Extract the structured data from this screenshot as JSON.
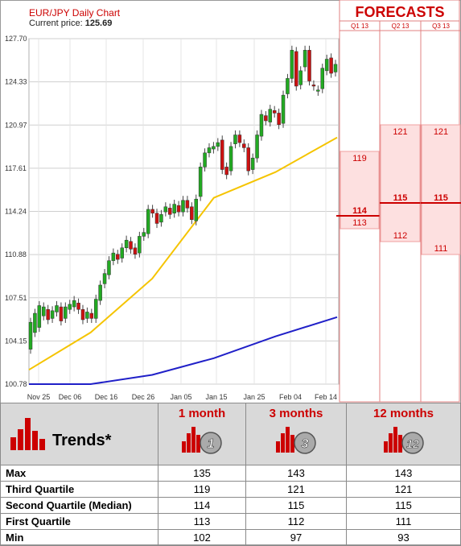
{
  "header": {
    "title": "EUR/JPY Daily Chart",
    "price_label": "Current price:",
    "price": "125.69"
  },
  "forecasts": {
    "title": "FORECASTS",
    "quarters": [
      "Q1 13",
      "Q2 13",
      "Q3 13"
    ],
    "columns": [
      {
        "quarter": "Q1 13",
        "q3": 119,
        "median": 114,
        "q1": 113
      },
      {
        "quarter": "Q2 13",
        "q3": 121,
        "median": 115,
        "q1": 112
      },
      {
        "quarter": "Q3 13",
        "q3": 121,
        "median": 115,
        "q1": 111
      }
    ],
    "median_color": "#cc0000",
    "band_color": "#fde0e0"
  },
  "chart_data": {
    "type": "candlestick",
    "title": "EUR/JPY Daily Chart",
    "y_ticks": [
      "127.70",
      "124.33",
      "120.97",
      "117.61",
      "114.24",
      "110.88",
      "107.51",
      "104.15",
      "100.78"
    ],
    "ylim": [
      100.78,
      127.7
    ],
    "x_ticks": [
      "Nov 25",
      "Dec 06",
      "Dec 16",
      "Dec 26",
      "Jan 05",
      "Jan 15",
      "Jan 25",
      "Feb 04",
      "Feb 14"
    ],
    "candles": [
      [
        103.5,
        105.6
      ],
      [
        104.8,
        106.3
      ],
      [
        105.2,
        106.9
      ],
      [
        106.1,
        106.8
      ],
      [
        106.6,
        105.8
      ],
      [
        105.9,
        106.5
      ],
      [
        106.4,
        106.9
      ],
      [
        106.8,
        105.7
      ],
      [
        105.9,
        106.8
      ],
      [
        106.6,
        107.0
      ],
      [
        106.8,
        107.3
      ],
      [
        107.1,
        106.6
      ],
      [
        106.6,
        105.8
      ],
      [
        105.9,
        106.4
      ],
      [
        106.3,
        105.9
      ],
      [
        105.9,
        107.4
      ],
      [
        107.3,
        108.5
      ],
      [
        108.6,
        109.4
      ],
      [
        109.3,
        110.4
      ],
      [
        110.4,
        111.0
      ],
      [
        110.9,
        110.5
      ],
      [
        110.6,
        111.4
      ],
      [
        111.4,
        112.0
      ],
      [
        111.9,
        111.3
      ],
      [
        111.4,
        110.9
      ],
      [
        111.0,
        112.3
      ],
      [
        112.3,
        112.6
      ],
      [
        112.5,
        114.4
      ],
      [
        114.4,
        114.1
      ],
      [
        114.1,
        113.3
      ],
      [
        113.4,
        114.0
      ],
      [
        114.2,
        114.6
      ],
      [
        114.5,
        114.0
      ],
      [
        114.1,
        114.8
      ],
      [
        114.7,
        114.2
      ],
      [
        114.2,
        115.1
      ],
      [
        115.1,
        114.5
      ],
      [
        114.6,
        113.6
      ],
      [
        113.5,
        115.2
      ],
      [
        115.4,
        117.7
      ],
      [
        117.7,
        118.8
      ],
      [
        118.8,
        119.2
      ],
      [
        119.1,
        119.3
      ],
      [
        119.3,
        119.6
      ],
      [
        119.8,
        117.5
      ],
      [
        117.7,
        117.1
      ],
      [
        117.4,
        119.3
      ],
      [
        119.5,
        120.2
      ],
      [
        120.2,
        119.6
      ],
      [
        119.5,
        119.2
      ],
      [
        119.2,
        117.4
      ],
      [
        117.5,
        118.4
      ],
      [
        118.4,
        120.2
      ],
      [
        120.1,
        121.8
      ],
      [
        121.7,
        121.3
      ],
      [
        121.2,
        122.2
      ],
      [
        122.1,
        121.9
      ],
      [
        121.9,
        121.0
      ],
      [
        121.1,
        123.3
      ],
      [
        123.4,
        124.6
      ],
      [
        124.6,
        126.8
      ],
      [
        126.7,
        124.0
      ],
      [
        124.1,
        125.2
      ],
      [
        125.5,
        126.8
      ],
      [
        126.8,
        124.4
      ],
      [
        124.1,
        124.0
      ],
      [
        123.6,
        123.7
      ],
      [
        123.8,
        125.4
      ],
      [
        125.2,
        126.1
      ],
      [
        126.2,
        125.0
      ],
      [
        125.1,
        125.7
      ]
    ],
    "series": [
      {
        "name": "",
        "color": "#f5c400",
        "from": [
          101.9,
          104.8,
          109.0,
          115.3,
          117.3,
          120.0
        ]
      },
      {
        "name": "",
        "color": "#2020c8",
        "from": [
          100.78,
          100.78,
          101.5,
          102.8,
          104.5,
          106.0
        ]
      }
    ],
    "up_color": "#22aa22",
    "down_color": "#cc1111",
    "grid": true
  },
  "trends": {
    "title": "Trends*",
    "horizons": [
      {
        "label": "1 month",
        "badge": "1"
      },
      {
        "label": "3 months",
        "badge": "3"
      },
      {
        "label": "12 months",
        "badge": "12"
      }
    ],
    "rows": [
      {
        "label": "Max",
        "values": [
          135,
          143,
          143
        ]
      },
      {
        "label": "Third Quartile",
        "values": [
          119,
          121,
          121
        ]
      },
      {
        "label": "Second Quartile (Median)",
        "values": [
          114,
          115,
          115
        ]
      },
      {
        "label": "First Quartile",
        "values": [
          113,
          112,
          111
        ]
      },
      {
        "label": "Min",
        "values": [
          102,
          97,
          93
        ]
      }
    ]
  }
}
